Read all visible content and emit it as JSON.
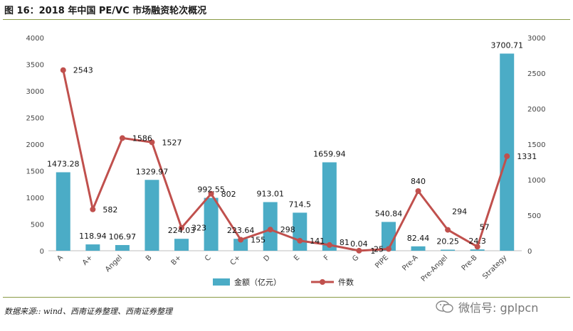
{
  "title": "图 16：2018 年中国 PE/VC 市场融资轮次概况",
  "source": "数据来源:: wind、西南证券整理、西南证券整理",
  "watermark": "微信号: gplpcn",
  "chart_data": {
    "type": "bar+line",
    "categories": [
      "A",
      "A+",
      "Angel",
      "B",
      "B+",
      "C",
      "C+",
      "D",
      "E",
      "F",
      "G",
      "PIPE",
      "Pre-A",
      "Pre-Angel",
      "Pre-B",
      "Strategy"
    ],
    "series": [
      {
        "name": "金额（亿元）",
        "type": "bar",
        "axis": "left",
        "color": "#4bacc6",
        "values": [
          1473.28,
          118.94,
          106.97,
          1329.97,
          224.03,
          992.55,
          223.64,
          913.01,
          714.5,
          1659.94,
          0.04,
          540.84,
          82.44,
          20.25,
          24.3,
          3700.71
        ],
        "labels": [
          "1473.28",
          "118.94",
          "106.97",
          "1329.97",
          "224.03",
          "992.55",
          "223.64",
          "913.01",
          "714.5",
          "1659.94",
          "0.04",
          "540.84",
          "82.44",
          "20.25",
          "24.3",
          "3700.71"
        ]
      },
      {
        "name": "件数",
        "type": "line",
        "axis": "right",
        "color": "#c0504d",
        "values": [
          2543,
          582,
          1586,
          1527,
          323,
          802,
          155,
          298,
          141,
          81,
          1,
          25,
          840,
          294,
          57,
          1331
        ],
        "labels": [
          "2543",
          "582",
          "1586",
          "1527",
          "323",
          "802",
          "155",
          "298",
          "141",
          "81",
          "1",
          "25",
          "840",
          "294",
          "57",
          "1331"
        ]
      }
    ],
    "y_left": {
      "min": 0,
      "max": 4000,
      "ticks": [
        "0",
        "500",
        "1000",
        "1500",
        "2000",
        "2500",
        "3000",
        "3500",
        "4000"
      ]
    },
    "y_right": {
      "min": 0,
      "max": 3000,
      "ticks": [
        "0",
        "500",
        "1000",
        "1500",
        "2000",
        "2500",
        "3000"
      ]
    },
    "grid": false,
    "legend": "bottom-center"
  }
}
